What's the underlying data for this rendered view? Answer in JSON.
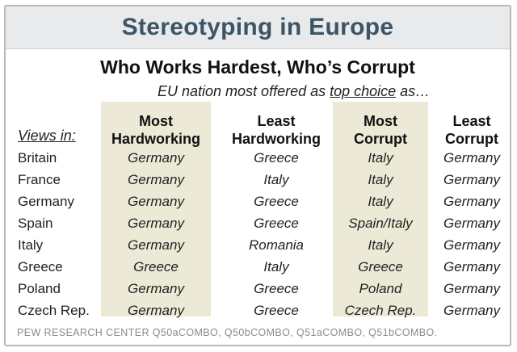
{
  "title": "Stereotyping in Europe",
  "subtitle": "Who Works Hardest, Who’s Corrupt",
  "note_prefix": "EU nation most offered as ",
  "note_underlined": "top choice",
  "note_suffix": " as…",
  "views_label": "Views in:",
  "columns": [
    {
      "line1": "Most",
      "line2": "Hardworking"
    },
    {
      "line1": "Least",
      "line2": "Hardworking"
    },
    {
      "line1": "Most",
      "line2": "Corrupt"
    },
    {
      "line1": "Least",
      "line2": "Corrupt"
    }
  ],
  "rows": [
    {
      "country": "Britain",
      "values": [
        "Germany",
        "Greece",
        "Italy",
        "Germany"
      ]
    },
    {
      "country": "France",
      "values": [
        "Germany",
        "Italy",
        "Italy",
        "Germany"
      ]
    },
    {
      "country": "Germany",
      "values": [
        "Germany",
        "Greece",
        "Italy",
        "Germany"
      ]
    },
    {
      "country": "Spain",
      "values": [
        "Germany",
        "Greece",
        "Spain/Italy",
        "Germany"
      ]
    },
    {
      "country": "Italy",
      "values": [
        "Germany",
        "Romania",
        "Italy",
        "Germany"
      ]
    },
    {
      "country": "Greece",
      "values": [
        "Greece",
        "Italy",
        "Greece",
        "Germany"
      ]
    },
    {
      "country": "Poland",
      "values": [
        "Germany",
        "Greece",
        "Poland",
        "Germany"
      ]
    },
    {
      "country": "Czech Rep.",
      "values": [
        "Germany",
        "Greece",
        "Czech Rep.",
        "Germany"
      ]
    }
  ],
  "source": "PEW RESEARCH CENTER Q50aCOMBO, Q50bCOMBO, Q51aCOMBO, Q51bCOMBO.",
  "colors": {
    "title": "#3b5566",
    "header_bg": "#e8eaec",
    "shade": "#ece9d6",
    "source": "#8a8a8a"
  }
}
